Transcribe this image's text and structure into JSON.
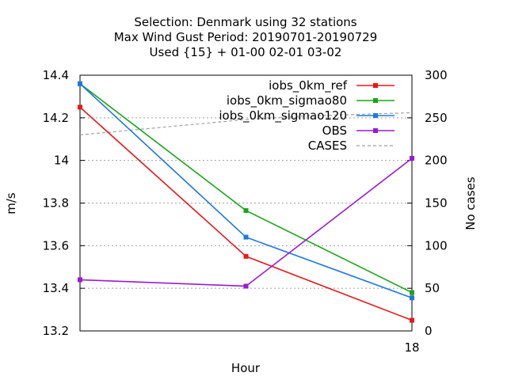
{
  "chart_data": {
    "type": "line",
    "title_lines": [
      "Selection: Denmark using    32 stations",
      "Max Wind Gust   Period: 20190701-20190729",
      "Used {15} + 01-00 02-01 03-02"
    ],
    "xlabel": "Hour",
    "ylabel": "m/s",
    "y2label": "No cases",
    "xlim": [
      6,
      18
    ],
    "ylim": [
      13.2,
      14.4
    ],
    "y2lim": [
      0,
      300
    ],
    "x_ticks": [
      18
    ],
    "y_ticks": [
      "13.2",
      "13.4",
      "13.6",
      "13.8",
      "14",
      "14.2",
      "14.4"
    ],
    "y2_ticks": [
      "0",
      "50",
      "100",
      "150",
      "200",
      "250",
      "300"
    ],
    "grid": true,
    "legend_position": "top-right",
    "x": [
      6,
      12,
      18
    ],
    "series": [
      {
        "name": "iobs_0km_ref",
        "color": "#e41a1c",
        "values": [
          14.25,
          13.55,
          13.25
        ]
      },
      {
        "name": "iobs_0km_sigmao80",
        "color": "#1aa51a",
        "values": [
          14.36,
          13.765,
          13.38
        ]
      },
      {
        "name": "iobs_0km_sigmao120",
        "color": "#1e78dc",
        "values": [
          14.36,
          13.64,
          13.355
        ]
      },
      {
        "name": "OBS",
        "color": "#9a1ad2",
        "values": [
          13.44,
          13.41,
          14.01
        ]
      }
    ],
    "cases": {
      "name": "CASES",
      "color": "#a0a0a0",
      "axis": "right",
      "x": [
        6,
        8,
        10,
        12,
        14,
        16,
        18
      ],
      "values": [
        230,
        236,
        242,
        248,
        252,
        254,
        256
      ]
    }
  }
}
